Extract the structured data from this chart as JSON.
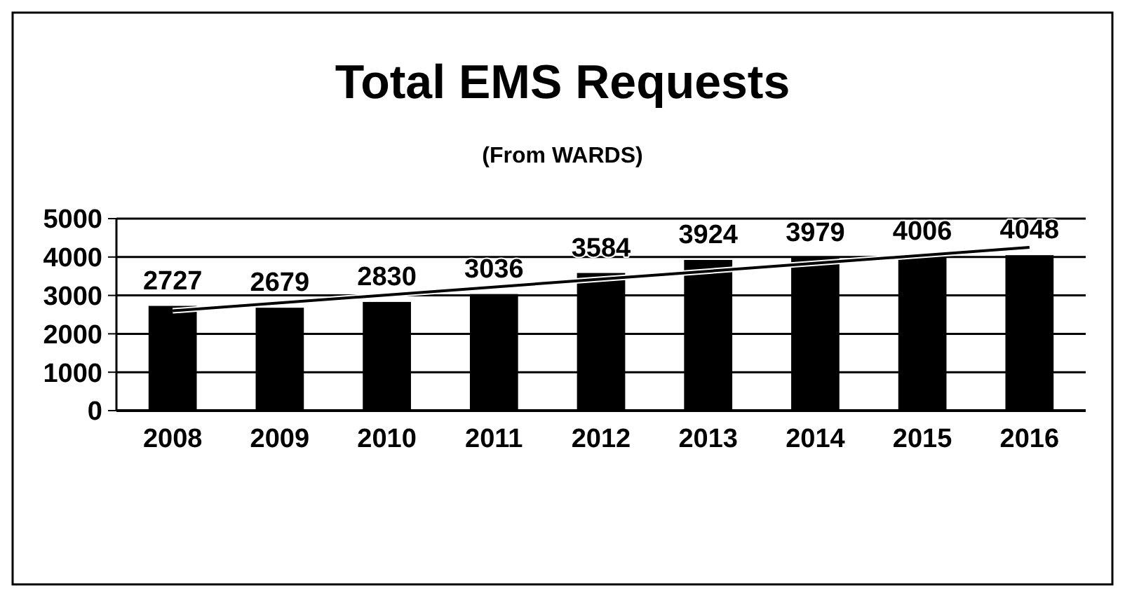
{
  "chart_data": {
    "type": "bar",
    "title": "Total EMS Requests",
    "subtitle": "(From WARDS)",
    "categories": [
      "2008",
      "2009",
      "2010",
      "2011",
      "2012",
      "2013",
      "2014",
      "2015",
      "2016"
    ],
    "series": [
      {
        "color": "#000000",
        "values": [
          2727,
          2679,
          2830,
          3036,
          3584,
          3924,
          3979,
          4006,
          4048
        ],
        "value_labels": [
          "2727",
          "2679",
          "2830",
          "3036",
          "3584",
          "3924",
          "3979",
          "4006",
          "4048"
        ]
      },
      {
        "type": "line",
        "color": "#000000",
        "values": [
          2600,
          null,
          null,
          null,
          null,
          null,
          null,
          null,
          4250
        ]
      }
    ],
    "ylim": [
      0,
      5000
    ],
    "yticks": [
      0,
      1000,
      2000,
      3000,
      4000,
      5000
    ],
    "grid": "y",
    "line_style": "solid"
  }
}
